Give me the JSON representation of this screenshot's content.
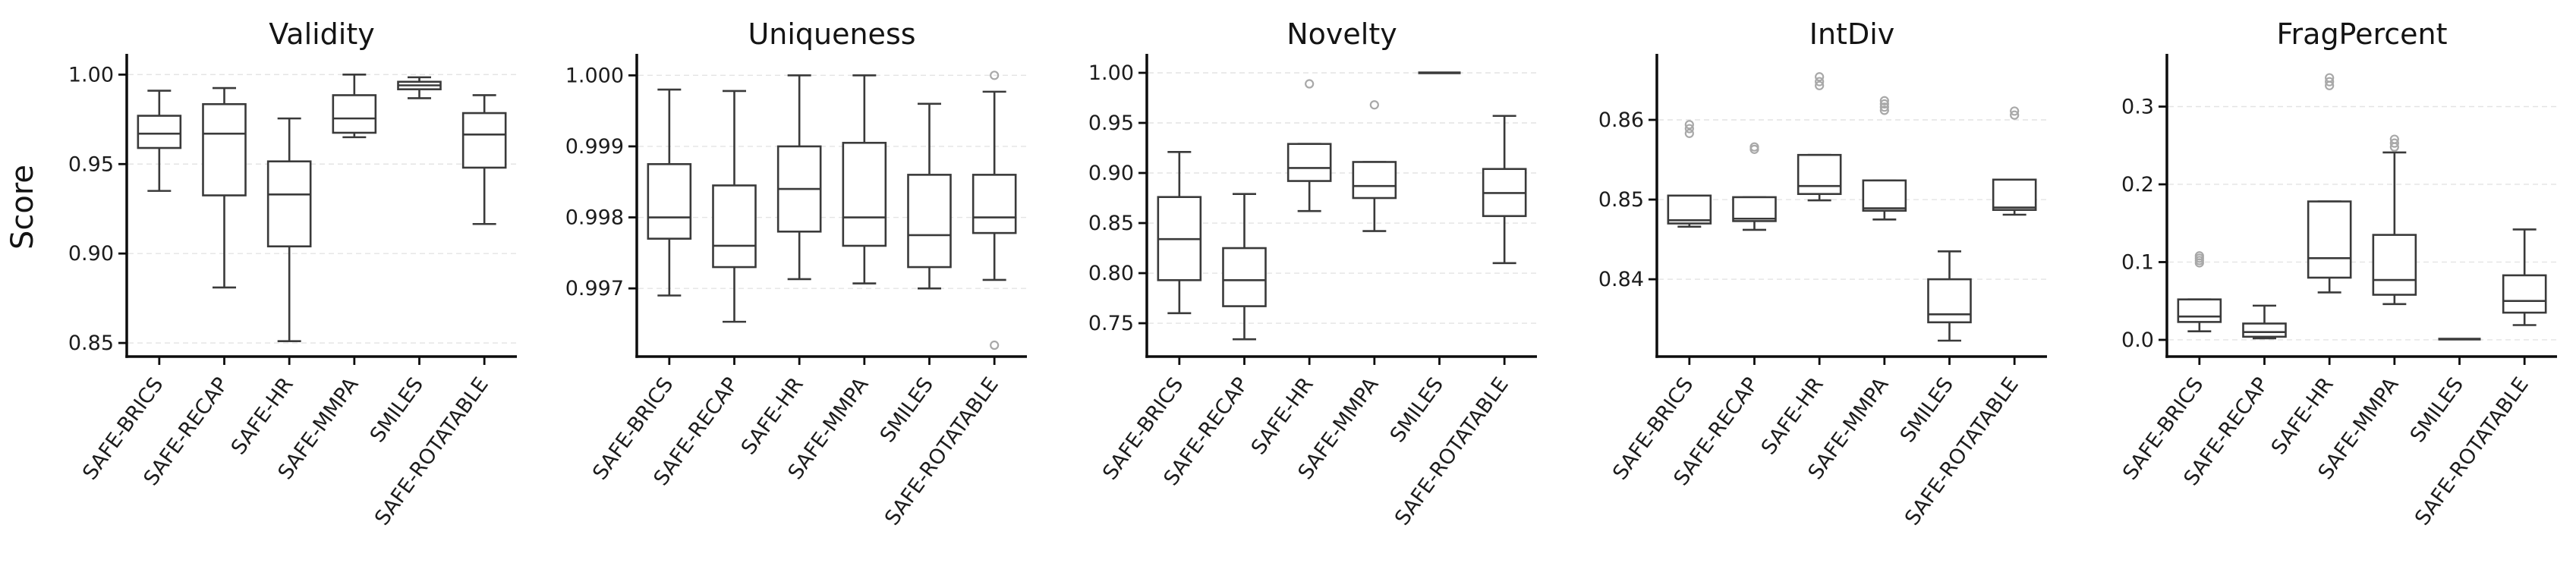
{
  "figure": {
    "ylabel": "Score",
    "categories": [
      "SAFE-BRICS",
      "SAFE-RECAP",
      "SAFE-HR",
      "SAFE-MMPA",
      "SMILES",
      "SAFE-ROTATABLE"
    ],
    "colors": {
      "background": "#ffffff",
      "box": "#3a3a3a",
      "box_fill": "#ffffff",
      "spine": "#0d0d0d",
      "grid": "#e4e4e4",
      "flier": "#a8a8a8",
      "title_text": "#141414",
      "tick_text": "#1c1c1c"
    }
  },
  "chart_data": [
    {
      "type": "box",
      "title": "Validity",
      "ylabel": "Score",
      "categories": [
        "SAFE-BRICS",
        "SAFE-RECAP",
        "SAFE-HR",
        "SAFE-MMPA",
        "SMILES",
        "SAFE-ROTATABLE"
      ],
      "ylim": [
        0.8424,
        1.0099
      ],
      "yticks": [
        0.85,
        0.9,
        0.95,
        1.0
      ],
      "ytick_labels": [
        "0.85",
        "0.90",
        "0.95",
        "1.00"
      ],
      "grid": true,
      "boxes": [
        {
          "category": "SAFE-BRICS",
          "whislo": 0.935,
          "q1": 0.959,
          "med": 0.967,
          "q3": 0.977,
          "whishi": 0.991,
          "fliers": []
        },
        {
          "category": "SAFE-RECAP",
          "whislo": 0.881,
          "q1": 0.9325,
          "med": 0.967,
          "q3": 0.9835,
          "whishi": 0.9925,
          "fliers": []
        },
        {
          "category": "SAFE-HR",
          "whislo": 0.851,
          "q1": 0.904,
          "med": 0.933,
          "q3": 0.9515,
          "whishi": 0.9755,
          "fliers": []
        },
        {
          "category": "SAFE-MMPA",
          "whislo": 0.965,
          "q1": 0.9675,
          "med": 0.9755,
          "q3": 0.9885,
          "whishi": 1.0,
          "fliers": []
        },
        {
          "category": "SMILES",
          "whislo": 0.9868,
          "q1": 0.9918,
          "med": 0.994,
          "q3": 0.996,
          "whishi": 0.9985,
          "fliers": []
        },
        {
          "category": "SAFE-ROTATABLE",
          "whislo": 0.9165,
          "q1": 0.948,
          "med": 0.9665,
          "q3": 0.9785,
          "whishi": 0.9885,
          "fliers": []
        }
      ]
    },
    {
      "type": "box",
      "title": "Uniqueness",
      "ylabel": "Score",
      "categories": [
        "SAFE-BRICS",
        "SAFE-RECAP",
        "SAFE-HR",
        "SAFE-MMPA",
        "SMILES",
        "SAFE-ROTATABLE"
      ],
      "ylim": [
        0.99604,
        1.00026
      ],
      "yticks": [
        0.997,
        0.998,
        0.999,
        1.0
      ],
      "ytick_labels": [
        "0.997",
        "0.998",
        "0.999",
        "1.000"
      ],
      "grid": true,
      "boxes": [
        {
          "category": "SAFE-BRICS",
          "whislo": 0.9969,
          "q1": 0.9977,
          "med": 0.998,
          "q3": 0.99875,
          "whishi": 0.9998,
          "fliers": []
        },
        {
          "category": "SAFE-RECAP",
          "whislo": 0.99653,
          "q1": 0.9973,
          "med": 0.9976,
          "q3": 0.99845,
          "whishi": 0.99978,
          "fliers": []
        },
        {
          "category": "SAFE-HR",
          "whislo": 0.99713,
          "q1": 0.9978,
          "med": 0.9984,
          "q3": 0.999,
          "whishi": 1.0,
          "fliers": []
        },
        {
          "category": "SAFE-MMPA",
          "whislo": 0.99707,
          "q1": 0.9976,
          "med": 0.998,
          "q3": 0.99905,
          "whishi": 1.0,
          "fliers": []
        },
        {
          "category": "SMILES",
          "whislo": 0.997,
          "q1": 0.9973,
          "med": 0.99775,
          "q3": 0.9986,
          "whishi": 0.9996,
          "fliers": []
        },
        {
          "category": "SAFE-ROTATABLE",
          "whislo": 0.99712,
          "q1": 0.99778,
          "med": 0.998,
          "q3": 0.9986,
          "whishi": 0.99977,
          "fliers": [
            1.0,
            0.9962
          ]
        }
      ]
    },
    {
      "type": "box",
      "title": "Novelty",
      "ylabel": "Score",
      "categories": [
        "SAFE-BRICS",
        "SAFE-RECAP",
        "SAFE-HR",
        "SAFE-MMPA",
        "SMILES",
        "SAFE-ROTATABLE"
      ],
      "ylim": [
        0.7167,
        1.0159
      ],
      "yticks": [
        0.75,
        0.8,
        0.85,
        0.9,
        0.95,
        1.0
      ],
      "ytick_labels": [
        "0.75",
        "0.80",
        "0.85",
        "0.90",
        "0.95",
        "1.00"
      ],
      "grid": true,
      "boxes": [
        {
          "category": "SAFE-BRICS",
          "whislo": 0.76,
          "q1": 0.793,
          "med": 0.834,
          "q3": 0.876,
          "whishi": 0.921,
          "fliers": []
        },
        {
          "category": "SAFE-RECAP",
          "whislo": 0.734,
          "q1": 0.767,
          "med": 0.793,
          "q3": 0.825,
          "whishi": 0.879,
          "fliers": []
        },
        {
          "category": "SAFE-HR",
          "whislo": 0.862,
          "q1": 0.892,
          "med": 0.905,
          "q3": 0.929,
          "whishi": 0.929,
          "fliers": [
            0.989
          ]
        },
        {
          "category": "SAFE-MMPA",
          "whislo": 0.842,
          "q1": 0.875,
          "med": 0.887,
          "q3": 0.911,
          "whishi": 0.911,
          "fliers": [
            0.968
          ]
        },
        {
          "category": "SMILES",
          "whislo": 1.0,
          "q1": 1.0,
          "med": 1.0,
          "q3": 1.0,
          "whishi": 1.0,
          "fliers": []
        },
        {
          "category": "SAFE-ROTATABLE",
          "whislo": 0.81,
          "q1": 0.857,
          "med": 0.88,
          "q3": 0.904,
          "whishi": 0.957,
          "fliers": []
        }
      ]
    },
    {
      "type": "box",
      "title": "IntDiv",
      "ylabel": "Score",
      "categories": [
        "SAFE-BRICS",
        "SAFE-RECAP",
        "SAFE-HR",
        "SAFE-MMPA",
        "SMILES",
        "SAFE-ROTATABLE"
      ],
      "ylim": [
        0.8303,
        0.8679
      ],
      "yticks": [
        0.84,
        0.85,
        0.86
      ],
      "ytick_labels": [
        "0.84",
        "0.85",
        "0.86"
      ],
      "grid": true,
      "boxes": [
        {
          "category": "SAFE-BRICS",
          "whislo": 0.8466,
          "q1": 0.847,
          "med": 0.8474,
          "q3": 0.8505,
          "whishi": 0.8505,
          "fliers": [
            0.8583,
            0.8589,
            0.8594
          ]
        },
        {
          "category": "SAFE-RECAP",
          "whislo": 0.8462,
          "q1": 0.8473,
          "med": 0.8476,
          "q3": 0.8503,
          "whishi": 0.8503,
          "fliers": [
            0.8563,
            0.8566
          ]
        },
        {
          "category": "SAFE-HR",
          "whislo": 0.8499,
          "q1": 0.8507,
          "med": 0.8517,
          "q3": 0.8556,
          "whishi": 0.8556,
          "fliers": [
            0.8643,
            0.8648,
            0.8654
          ]
        },
        {
          "category": "SAFE-MMPA",
          "whislo": 0.8475,
          "q1": 0.8486,
          "med": 0.8489,
          "q3": 0.8524,
          "whishi": 0.8524,
          "fliers": [
            0.8612,
            0.8616,
            0.862,
            0.8624
          ]
        },
        {
          "category": "SMILES",
          "whislo": 0.8323,
          "q1": 0.8346,
          "med": 0.8356,
          "q3": 0.84,
          "whishi": 0.8435,
          "fliers": []
        },
        {
          "category": "SAFE-ROTATABLE",
          "whislo": 0.8481,
          "q1": 0.8487,
          "med": 0.849,
          "q3": 0.8525,
          "whishi": 0.8525,
          "fliers": [
            0.8606,
            0.8611
          ]
        }
      ]
    },
    {
      "type": "box",
      "title": "FragPercent",
      "ylabel": "Score",
      "categories": [
        "SAFE-BRICS",
        "SAFE-RECAP",
        "SAFE-HR",
        "SAFE-MMPA",
        "SMILES",
        "SAFE-ROTATABLE"
      ],
      "ylim": [
        -0.0215,
        0.3639
      ],
      "yticks": [
        0.0,
        0.1,
        0.2,
        0.3
      ],
      "ytick_labels": [
        "0.0",
        "0.1",
        "0.2",
        "0.3"
      ],
      "grid": true,
      "boxes": [
        {
          "category": "SAFE-BRICS",
          "whislo": 0.011,
          "q1": 0.023,
          "med": 0.03,
          "q3": 0.052,
          "whishi": 0.052,
          "fliers": [
            0.099,
            0.102,
            0.105,
            0.108
          ]
        },
        {
          "category": "SAFE-RECAP",
          "whislo": 0.002,
          "q1": 0.004,
          "med": 0.01,
          "q3": 0.021,
          "whishi": 0.044,
          "fliers": []
        },
        {
          "category": "SAFE-HR",
          "whislo": 0.061,
          "q1": 0.08,
          "med": 0.105,
          "q3": 0.178,
          "whishi": 0.178,
          "fliers": [
            0.327,
            0.332,
            0.337
          ]
        },
        {
          "category": "SAFE-MMPA",
          "whislo": 0.046,
          "q1": 0.058,
          "med": 0.077,
          "q3": 0.135,
          "whishi": 0.241,
          "fliers": [
            0.248,
            0.253,
            0.258
          ]
        },
        {
          "category": "SMILES",
          "whislo": 0.001,
          "q1": 0.001,
          "med": 0.001,
          "q3": 0.001,
          "whishi": 0.001,
          "fliers": []
        },
        {
          "category": "SAFE-ROTATABLE",
          "whislo": 0.019,
          "q1": 0.035,
          "med": 0.05,
          "q3": 0.083,
          "whishi": 0.142,
          "fliers": []
        }
      ]
    }
  ]
}
